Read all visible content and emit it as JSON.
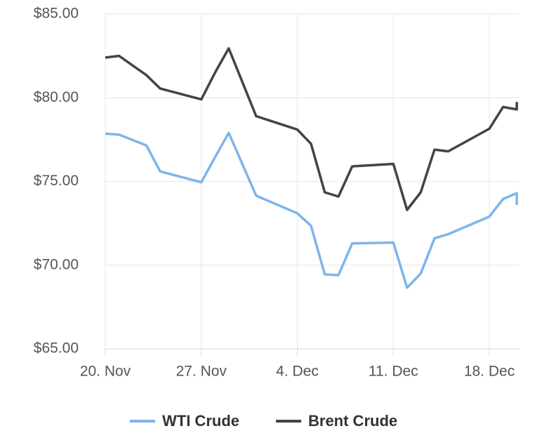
{
  "chart_data": {
    "type": "line",
    "x": [
      "20. Nov",
      "21. Nov",
      "23. Nov",
      "24. Nov",
      "27. Nov",
      "28. Nov",
      "29. Nov",
      "1. Dec",
      "4. Dec",
      "5. Dec",
      "6. Dec",
      "7. Dec",
      "8. Dec",
      "11. Dec",
      "12. Dec",
      "13. Dec",
      "14. Dec",
      "15. Dec",
      "18. Dec",
      "19. Dec",
      "20. Dec",
      "20. Dec"
    ],
    "series": [
      {
        "name": "WTI Crude",
        "color": "#7cb5ec",
        "values": [
          77.85,
          77.8,
          77.15,
          75.6,
          74.95,
          76.45,
          77.9,
          74.15,
          73.1,
          72.35,
          69.45,
          69.4,
          71.3,
          71.35,
          68.65,
          69.5,
          71.6,
          71.85,
          72.9,
          73.95,
          74.3,
          73.6
        ]
      },
      {
        "name": "Brent Crude",
        "color": "#434348",
        "values": [
          82.4,
          82.5,
          81.35,
          80.55,
          79.9,
          81.5,
          82.95,
          78.9,
          78.1,
          77.25,
          74.35,
          74.1,
          75.9,
          76.05,
          73.3,
          74.35,
          76.9,
          76.8,
          78.15,
          79.45,
          79.3,
          79.75
        ]
      }
    ],
    "xlim": [
      "20. Nov",
      "20. Dec"
    ],
    "xticks": [
      "20. Nov",
      "27. Nov",
      "4. Dec",
      "11. Dec",
      "18. Dec"
    ],
    "ylim": [
      65,
      85
    ],
    "yticks": [
      {
        "value": 65,
        "label": "$65.00"
      },
      {
        "value": 70,
        "label": "$70.00"
      },
      {
        "value": 75,
        "label": "$75.00"
      },
      {
        "value": 80,
        "label": "$80.00"
      },
      {
        "value": 85,
        "label": "$85.00"
      }
    ],
    "grid": true,
    "legend": "bottom"
  }
}
